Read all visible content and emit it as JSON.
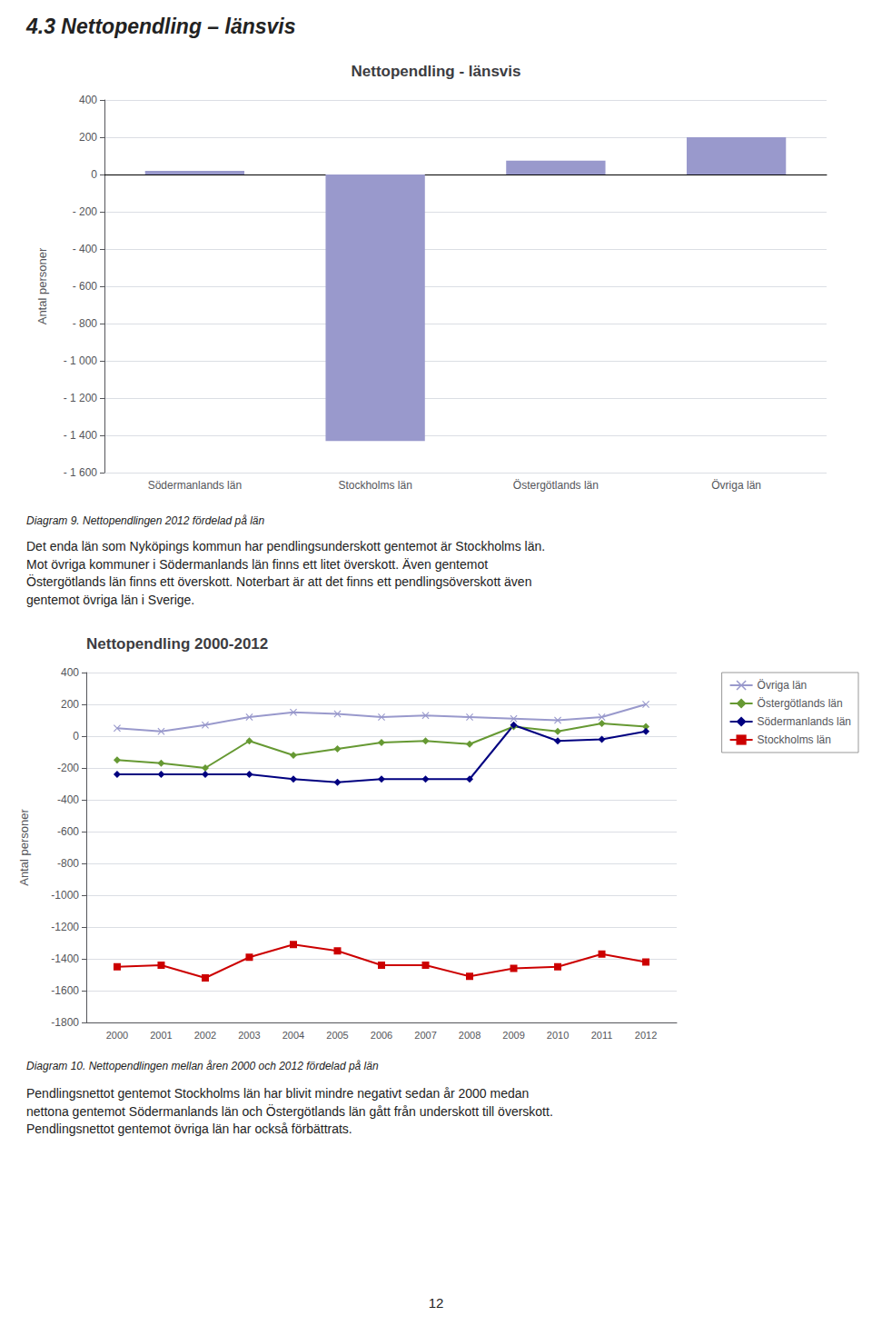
{
  "page_title": "4.3 Nettopendling – länsvis",
  "chart_data": [
    {
      "type": "bar",
      "title": "Nettopendling - länsvis",
      "categories": [
        "Södermanlands län",
        "Stockholms län",
        "Östergötlands län",
        "Övriga län"
      ],
      "values": [
        20,
        -1430,
        75,
        200
      ],
      "color": "#9999cc",
      "ylabel": "Antal personer",
      "ylim": [
        -1600,
        400
      ],
      "yticks": [
        400,
        200,
        0,
        {
          "value": -200,
          "label": "- 200"
        },
        {
          "value": -400,
          "label": "- 400"
        },
        {
          "value": -600,
          "label": "- 600"
        },
        {
          "value": -800,
          "label": "- 800"
        },
        {
          "value": -1000,
          "label": "- 1 000"
        },
        {
          "value": -1200,
          "label": "- 1 200"
        },
        {
          "value": -1400,
          "label": "- 1 400"
        },
        {
          "value": -1600,
          "label": "- 1 600"
        }
      ],
      "grid": true,
      "annotations": [
        "Diagram 9. Nettopendlingen 2012 fördelad på län",
        "Det enda län som Nyköpings kommun har pendlingsunderskott gentemot är Stockholms län.\nMot övriga kommuner i Södermanlands län finns ett litet överskott. Även gentemot\nÖstergötlands län finns ett överskott. Noterbart är att det finns ett pendlingsöverskott även\ngentemot övriga län i Sverige."
      ]
    },
    {
      "type": "line",
      "title": "Nettopendling 2000-2012",
      "x": [
        2000,
        2001,
        2002,
        2003,
        2004,
        2005,
        2006,
        2007,
        2008,
        2009,
        2010,
        2011,
        2012
      ],
      "series": [
        {
          "name": "Övriga län",
          "color": "#9999cc",
          "marker": "x",
          "values": [
            50,
            30,
            70,
            120,
            150,
            140,
            120,
            130,
            120,
            110,
            100,
            120,
            200
          ]
        },
        {
          "name": "Östergötlands län",
          "color": "#669933",
          "marker": "diamond",
          "values": [
            -150,
            -170,
            -200,
            -30,
            -120,
            -80,
            -40,
            -30,
            -50,
            60,
            30,
            80,
            60
          ]
        },
        {
          "name": "Södermanlands län",
          "color": "#000080",
          "marker": "diamond",
          "values": [
            -240,
            -240,
            -240,
            -240,
            -270,
            -290,
            -270,
            -270,
            -270,
            70,
            -30,
            -20,
            30
          ]
        },
        {
          "name": "Stockholms län",
          "color": "#cc0000",
          "marker": "square",
          "values": [
            -1450,
            -1440,
            -1520,
            -1390,
            -1310,
            -1350,
            -1440,
            -1440,
            -1510,
            -1460,
            -1450,
            -1370,
            -1420
          ]
        }
      ],
      "xlim": [
        1999.3,
        2012.7
      ],
      "xticks": [
        2000,
        2001,
        2002,
        2003,
        2004,
        2005,
        2006,
        2007,
        2008,
        2009,
        2010,
        2011,
        2012
      ],
      "ylabel": "Antal personer",
      "ylim": [
        -1800,
        400
      ],
      "yticks": [
        400,
        200,
        0,
        -200,
        -400,
        -600,
        -800,
        -1000,
        -1200,
        -1400,
        -1600,
        -1800
      ],
      "grid": true,
      "legend": "right",
      "annotations": [
        "Diagram 10. Nettopendlingen mellan åren 2000 och 2012 fördelad på län",
        "Pendlingsnettot gentemot Stockholms län har blivit mindre negativt sedan år 2000 medan\nnettona gentemot Södermanlands län och Östergötlands län gått från underskott till överskott.\nPendlingsnettot gentemot övriga län har också förbättrats."
      ]
    }
  ],
  "page_number": "12"
}
